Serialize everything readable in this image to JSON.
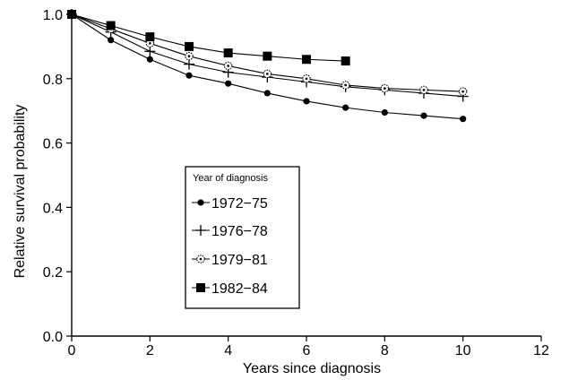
{
  "chart_data": {
    "type": "line",
    "title": "",
    "xlabel": "Years since diagnosis",
    "ylabel": "Relative survival probability",
    "xlim": [
      0,
      12
    ],
    "ylim": [
      0,
      1.0
    ],
    "x_ticks": [
      "0",
      "2",
      "4",
      "6",
      "8",
      "10",
      "12"
    ],
    "y_ticks": [
      "0.0",
      "0.2",
      "0.4",
      "0.6",
      "0.8",
      "1.0"
    ],
    "grid": false,
    "legend": {
      "title": "Year of diagnosis",
      "placement": "center-left"
    },
    "series": [
      {
        "name": "1972−75",
        "marker": "filled-circle",
        "x": [
          0,
          1,
          2,
          3,
          4,
          5,
          6,
          7,
          8,
          9,
          10
        ],
        "y": [
          1.0,
          0.92,
          0.86,
          0.81,
          0.785,
          0.755,
          0.73,
          0.71,
          0.695,
          0.685,
          0.675
        ]
      },
      {
        "name": "1976−78",
        "marker": "plus",
        "x": [
          0,
          1,
          2,
          3,
          4,
          5,
          6,
          7,
          8,
          9,
          10
        ],
        "y": [
          1.0,
          0.945,
          0.885,
          0.845,
          0.82,
          0.805,
          0.79,
          0.775,
          0.765,
          0.755,
          0.745
        ]
      },
      {
        "name": "1979−81",
        "marker": "open-circle",
        "x": [
          0,
          1,
          2,
          3,
          4,
          5,
          6,
          7,
          8,
          9,
          10
        ],
        "y": [
          1.0,
          0.955,
          0.91,
          0.87,
          0.84,
          0.815,
          0.8,
          0.78,
          0.77,
          0.765,
          0.76
        ]
      },
      {
        "name": "1982−84",
        "marker": "filled-square",
        "x": [
          0,
          1,
          2,
          3,
          4,
          5,
          6,
          7
        ],
        "y": [
          1.0,
          0.965,
          0.93,
          0.9,
          0.88,
          0.87,
          0.86,
          0.855
        ]
      }
    ]
  }
}
